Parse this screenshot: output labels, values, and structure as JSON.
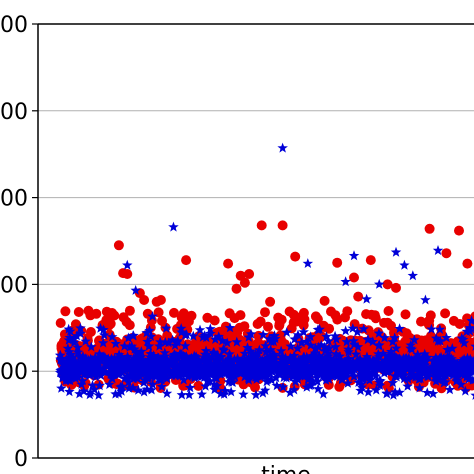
{
  "chart_data": {
    "type": "scatter",
    "title": "",
    "xlabel": "time",
    "ylabel": "",
    "ylim": [
      0,
      500
    ],
    "yticks": [
      0,
      100,
      200,
      300,
      400,
      500
    ],
    "ytick_labels": [
      "0",
      "00",
      "00",
      "00",
      "00",
      "00"
    ],
    "grid": "horizontal",
    "legend": "none",
    "series": [
      {
        "marker": "circle",
        "color": "#e80000",
        "points_dense_band": {
          "count": 1400,
          "x_range": [
            0.05,
            1.0
          ],
          "y_range": [
            80,
            170
          ],
          "y_cluster": [
            95,
            145
          ]
        },
        "outliers": [
          [
            0.14,
            245
          ],
          [
            0.15,
            213
          ],
          [
            0.16,
            212
          ],
          [
            0.19,
            190
          ],
          [
            0.2,
            182
          ],
          [
            0.23,
            180
          ],
          [
            0.24,
            182
          ],
          [
            0.3,
            228
          ],
          [
            0.4,
            224
          ],
          [
            0.42,
            195
          ],
          [
            0.43,
            210
          ],
          [
            0.44,
            202
          ],
          [
            0.45,
            212
          ],
          [
            0.48,
            268
          ],
          [
            0.5,
            180
          ],
          [
            0.53,
            268
          ],
          [
            0.56,
            232
          ],
          [
            0.63,
            181
          ],
          [
            0.66,
            225
          ],
          [
            0.7,
            208
          ],
          [
            0.71,
            186
          ],
          [
            0.74,
            228
          ],
          [
            0.78,
            200
          ],
          [
            0.8,
            196
          ],
          [
            0.88,
            264
          ],
          [
            0.92,
            236
          ],
          [
            0.95,
            262
          ],
          [
            0.97,
            224
          ],
          [
            1.01,
            290
          ],
          [
            1.02,
            223
          ],
          [
            1.03,
            200
          ],
          [
            1.05,
            212
          ],
          [
            1.09,
            196
          ]
        ]
      },
      {
        "marker": "star",
        "color": "#0000d8",
        "points_dense_band": {
          "count": 1600,
          "x_range": [
            0.05,
            1.0
          ],
          "y_range": [
            72,
            150
          ],
          "y_cluster": [
            85,
            125
          ]
        },
        "outliers": [
          [
            0.16,
            222
          ],
          [
            0.18,
            193
          ],
          [
            0.22,
            163
          ],
          [
            0.27,
            266
          ],
          [
            0.53,
            357
          ],
          [
            0.59,
            224
          ],
          [
            0.68,
            203
          ],
          [
            0.7,
            233
          ],
          [
            0.73,
            183
          ],
          [
            0.76,
            200
          ],
          [
            0.8,
            237
          ],
          [
            0.82,
            222
          ],
          [
            0.84,
            210
          ],
          [
            0.87,
            182
          ],
          [
            0.9,
            239
          ],
          [
            0.98,
            158
          ],
          [
            1.1,
            180
          ],
          [
            1.13,
            198
          ]
        ]
      }
    ]
  }
}
